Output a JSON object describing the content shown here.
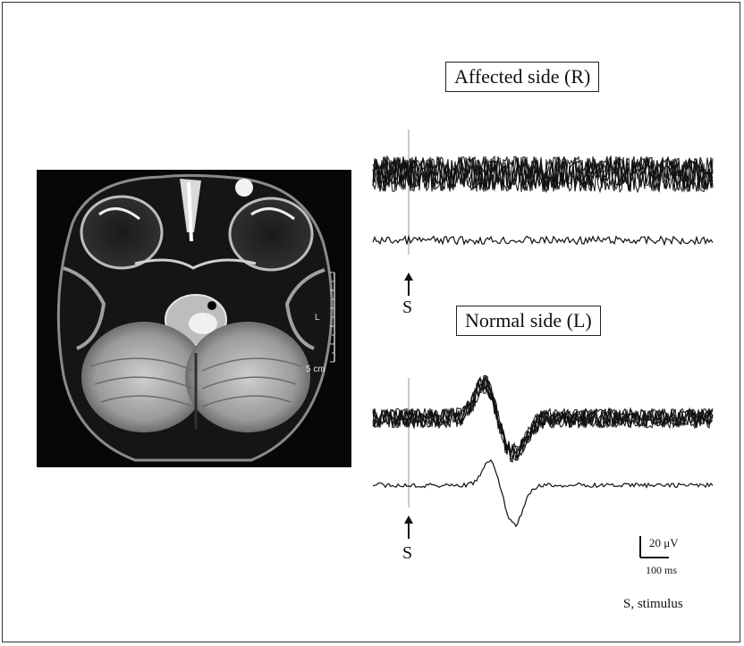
{
  "figure": {
    "mri": {
      "side_marker": "L",
      "scale_label": "5 cm"
    },
    "affected_label": "Affected side (R)",
    "normal_label": "Normal side (L)",
    "stimulus_marker": "S",
    "scale_bar": {
      "amplitude_label": "20 μV",
      "time_label": "100 ms"
    },
    "legend_note": "S, stimulus"
  }
}
